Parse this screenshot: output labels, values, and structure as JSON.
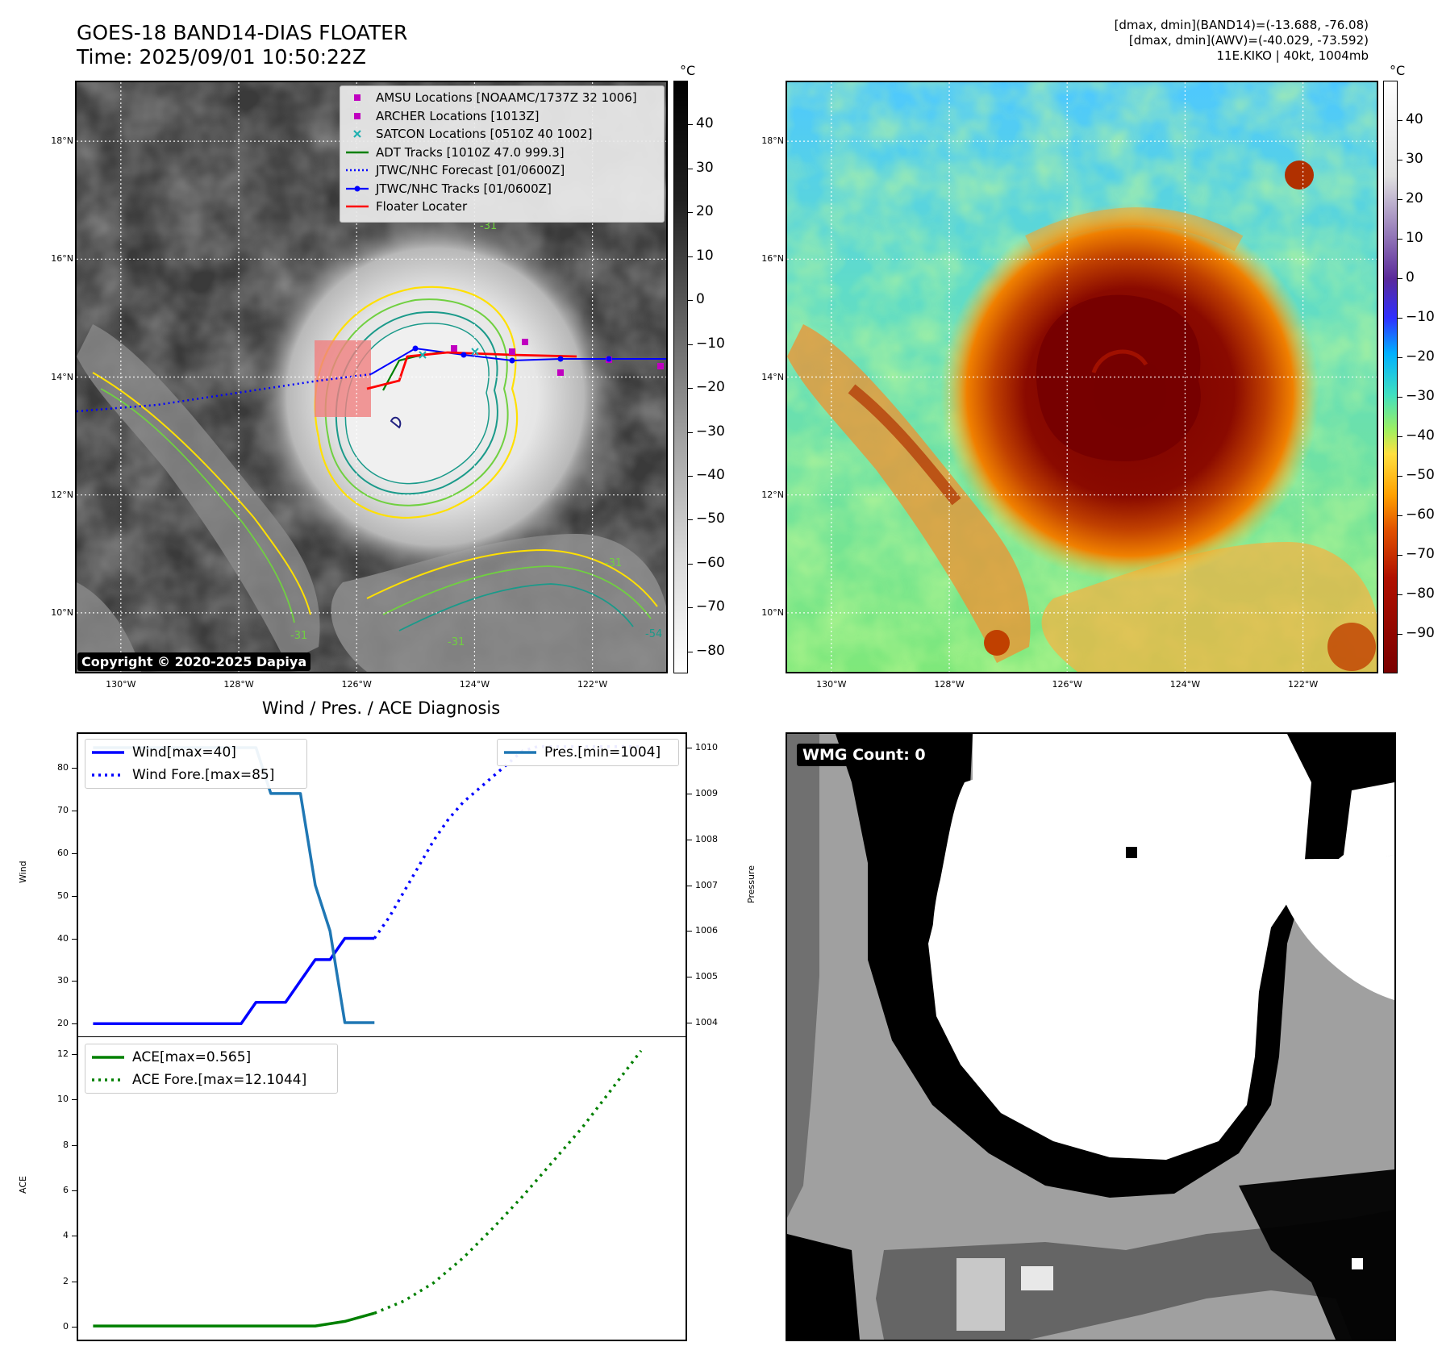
{
  "header": {
    "title_line1": "GOES-18 BAND14-DIAS FLOATER",
    "title_line2": "Time: 2025/09/01 10:50:22Z",
    "info_line1": "[dmax, dmin](BAND14)=(-13.688, -76.08)",
    "info_line2": "[dmax, dmin](AWV)=(-40.029, -73.592)",
    "info_line3": "11E.KIKO | 40kt, 1004mb"
  },
  "map": {
    "lon_ticks": [
      "130°W",
      "128°W",
      "126°W",
      "124°W",
      "122°W"
    ],
    "lon_values": [
      -130,
      -128,
      -126,
      -124,
      -122
    ],
    "lat_ticks": [
      "18°N",
      "16°N",
      "14°N",
      "12°N",
      "10°N"
    ],
    "lat_values": [
      18,
      16,
      14,
      12,
      10
    ],
    "lon_range": [
      -130.75,
      -120.75
    ],
    "lat_range": [
      9.0,
      19.0
    ],
    "legend": [
      {
        "label": "AMSU Locations [NOAAMC/1737Z 32 1006]",
        "symbol": "square",
        "color": "#c000c0"
      },
      {
        "label": "ARCHER Locations [1013Z]",
        "symbol": "square",
        "color": "#c000c0"
      },
      {
        "label": "SATCON Locations [0510Z 40 1002]",
        "symbol": "cross",
        "color": "#20b0b0"
      },
      {
        "label": "ADT Tracks [1010Z 47.0 999.3]",
        "symbol": "line",
        "color": "#008000"
      },
      {
        "label": "JTWC/NHC Forecast [01/0600Z]",
        "symbol": "dotted",
        "color": "#0000ff"
      },
      {
        "label": "JTWC/NHC Tracks [01/0600Z]",
        "symbol": "line-dot",
        "color": "#0000ff"
      },
      {
        "label": "Floater Locater",
        "symbol": "line",
        "color": "#ff0000"
      }
    ],
    "copyright": "Copyright © 2020-2025 Dapiya",
    "contour_labels": [
      "-31",
      "-31",
      "-31",
      "-54",
      "-31"
    ],
    "colorbar_unit": "°C",
    "gray_colorbar_ticks": [
      "40",
      "30",
      "20",
      "10",
      "0",
      "−10",
      "−20",
      "−30",
      "−40",
      "−50",
      "−60",
      "−70",
      "−80"
    ],
    "gray_colorbar_values": [
      40,
      30,
      20,
      10,
      0,
      -10,
      -20,
      -30,
      -40,
      -50,
      -60,
      -70,
      -80
    ],
    "gray_colorbar_range": [
      -85,
      50
    ],
    "color_colorbar_ticks": [
      "40",
      "30",
      "20",
      "10",
      "0",
      "−10",
      "−20",
      "−30",
      "−40",
      "−50",
      "−60",
      "−70",
      "−80",
      "−90"
    ],
    "color_colorbar_values": [
      40,
      30,
      20,
      10,
      0,
      -10,
      -20,
      -30,
      -40,
      -50,
      -60,
      -70,
      -80,
      -90
    ],
    "color_colorbar_range": [
      -100,
      50
    ],
    "colors": {
      "contour_yellow": "#ffe000",
      "contour_lightgreen": "#70d040",
      "contour_teal": "#1a9a8a",
      "contour_navy": "#202080"
    }
  },
  "chart_data": [
    {
      "type": "line",
      "title": "Wind / Pres. / ACE Diagnosis",
      "ylabel": "Wind",
      "ylabel_right": "Pressure",
      "ylim": [
        17,
        88
      ],
      "ylim_right": [
        1003.7,
        1010.3
      ],
      "x_index_range": [
        -1,
        40
      ],
      "yticks": [
        "80",
        "70",
        "60",
        "50",
        "40",
        "30",
        "20"
      ],
      "ytick_values": [
        80,
        70,
        60,
        50,
        40,
        30,
        20
      ],
      "yticks_right": [
        "1010",
        "1009",
        "1008",
        "1007",
        "1006",
        "1005",
        "1004"
      ],
      "ytick_values_right": [
        1010,
        1009,
        1008,
        1007,
        1006,
        1005,
        1004
      ],
      "series": [
        {
          "name": "Wind[max=40]",
          "style": "solid",
          "color": "#0000ff",
          "x": [
            0,
            1,
            2,
            3,
            4,
            5,
            6,
            7,
            8,
            9,
            10,
            11,
            12,
            13,
            14,
            15,
            16,
            17,
            18,
            19
          ],
          "values": [
            20,
            20,
            20,
            20,
            20,
            20,
            20,
            20,
            20,
            20,
            20,
            25,
            25,
            25,
            30,
            35,
            35,
            40,
            40,
            40
          ]
        },
        {
          "name": "Wind Fore.[max=85]",
          "style": "dotted",
          "color": "#0000ff",
          "x": [
            19,
            20,
            21,
            22,
            23,
            24,
            25,
            26,
            27,
            28,
            29,
            30,
            31,
            32,
            33,
            34,
            35,
            36,
            37
          ],
          "values": [
            40,
            45,
            51,
            57,
            63,
            68,
            72,
            75,
            78,
            81,
            84,
            85,
            85,
            85,
            85,
            85,
            85,
            85,
            85
          ]
        },
        {
          "name": "Pres.[min=1004]",
          "style": "solid",
          "color": "#1f77b4",
          "axis": "right",
          "x": [
            0,
            1,
            2,
            3,
            4,
            5,
            6,
            7,
            8,
            9,
            10,
            11,
            12,
            13,
            14,
            15,
            16,
            17,
            18,
            19
          ],
          "values": [
            1010,
            1010,
            1010,
            1010,
            1010,
            1010,
            1010,
            1010,
            1010,
            1010,
            1010,
            1010,
            1009,
            1009,
            1009,
            1007,
            1006,
            1004,
            1004,
            1004
          ]
        }
      ]
    },
    {
      "type": "line",
      "ylabel": "ACE",
      "ylim": [
        -0.6,
        12.7
      ],
      "x_index_range": [
        -1,
        40
      ],
      "yticks": [
        "12",
        "10",
        "8",
        "6",
        "4",
        "2",
        "0"
      ],
      "ytick_values": [
        12,
        10,
        8,
        6,
        4,
        2,
        0
      ],
      "series": [
        {
          "name": "ACE[max=0.565]",
          "style": "solid",
          "color": "#008000",
          "x": [
            0,
            5,
            10,
            13,
            15,
            17,
            19
          ],
          "values": [
            0,
            0,
            0,
            0,
            0,
            0.2,
            0.565
          ]
        },
        {
          "name": "ACE Fore.[max=12.1044]",
          "style": "dotted",
          "color": "#008000",
          "x": [
            19,
            21,
            23,
            25,
            27,
            29,
            31,
            33,
            35,
            37
          ],
          "values": [
            0.565,
            1.1,
            1.9,
            3.0,
            4.3,
            5.7,
            7.2,
            8.7,
            10.4,
            12.1044
          ]
        }
      ]
    }
  ],
  "wmg": {
    "label": "WMG Count: 0"
  }
}
